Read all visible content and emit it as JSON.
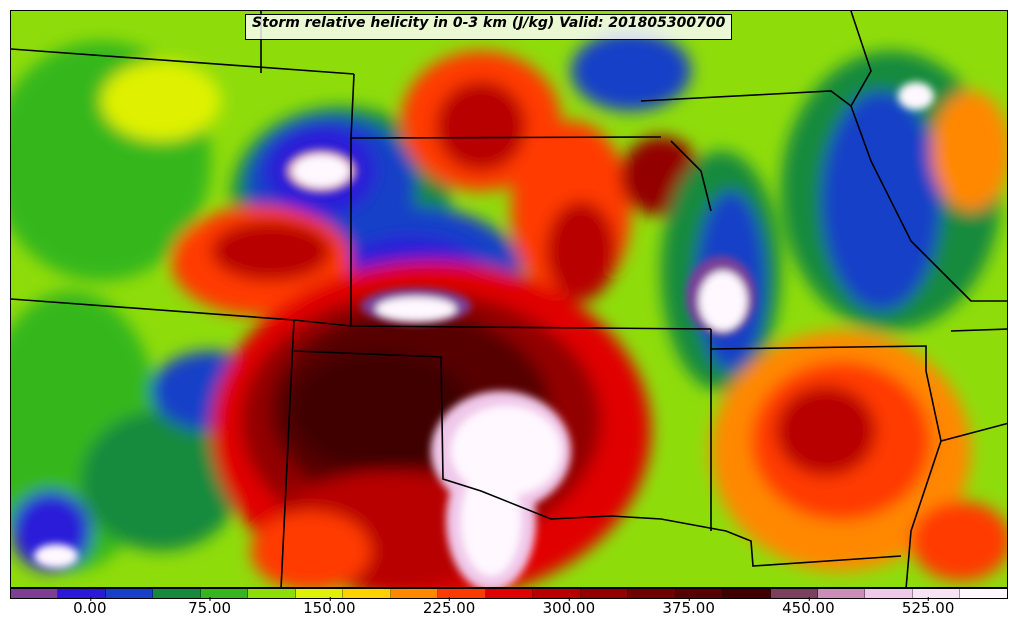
{
  "title": "Storm relative helicity in 0-3 km (J/kg) Valid: 201805300700",
  "colorbar": {
    "min": -50,
    "max": 575,
    "colors": [
      "#7b3f98",
      "#2a1ad8",
      "#1640c8",
      "#148a3c",
      "#34b71e",
      "#8fdc0b",
      "#dff106",
      "#ffd100",
      "#ff8800",
      "#ff3a00",
      "#e00000",
      "#b80000",
      "#930000",
      "#720000",
      "#560000",
      "#3f0000",
      "#7a4060",
      "#c890b8",
      "#f0c8ea",
      "#f8e2f6",
      "#fff8ff"
    ],
    "ticks": [
      {
        "value": 0,
        "label": "0.00"
      },
      {
        "value": 75,
        "label": "75.00"
      },
      {
        "value": 150,
        "label": "150.00"
      },
      {
        "value": 225,
        "label": "225.00"
      },
      {
        "value": 300,
        "label": "300.00"
      },
      {
        "value": 375,
        "label": "375.00"
      },
      {
        "value": 450,
        "label": "450.00"
      },
      {
        "value": 525,
        "label": "525.00"
      }
    ]
  }
}
